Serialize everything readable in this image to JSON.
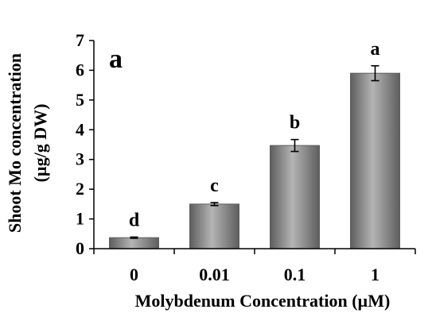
{
  "chart_data": {
    "type": "bar",
    "panel_label": "a",
    "categories": [
      "0",
      "0.01",
      "0.1",
      "1"
    ],
    "values": [
      0.37,
      1.5,
      3.47,
      5.9
    ],
    "error": [
      0.02,
      0.05,
      0.2,
      0.25
    ],
    "significance_letters": [
      "d",
      "c",
      "b",
      "a"
    ],
    "xlabel": "Molybdenum Concentration (µM)",
    "ylabel_line1": "Shoot Mo concentration",
    "ylabel_line2": "(µg/g DW)",
    "ylim": [
      0,
      7
    ],
    "yticks": [
      "0",
      "1",
      "2",
      "3",
      "4",
      "5",
      "6",
      "7"
    ],
    "grid": false,
    "legend": "none",
    "colors": {
      "bar_fill": "#8c8c8c",
      "bar_highlight": "#b4b4b4",
      "bar_shadow": "#5e5e5e",
      "axis": "#000000",
      "error_bar": "#000000"
    }
  }
}
